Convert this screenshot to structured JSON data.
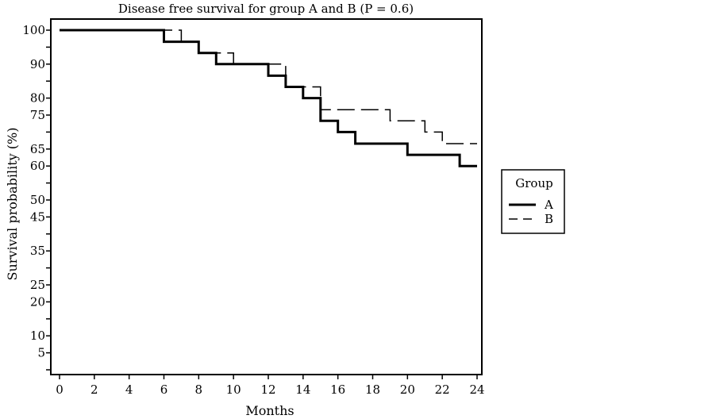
{
  "chart_data": {
    "type": "line",
    "title": "Disease free survival for group A and B (P = 0.6)",
    "xlabel": "Months",
    "ylabel": "Survival probability (%)",
    "xlim": [
      0,
      24
    ],
    "ylim": [
      0,
      100
    ],
    "x_ticks": [
      0,
      2,
      4,
      6,
      8,
      10,
      12,
      14,
      16,
      18,
      20,
      22,
      24
    ],
    "y_ticks": [
      5,
      10,
      20,
      25,
      35,
      45,
      50,
      60,
      65,
      75,
      80,
      90,
      100
    ],
    "legend": {
      "title": "Group",
      "placement": "right"
    },
    "series": [
      {
        "name": "A",
        "style": "solid",
        "color": "#000000",
        "x": [
          0,
          6,
          6,
          8,
          8,
          9,
          9,
          12,
          12,
          13,
          13,
          14,
          14,
          15,
          15,
          16,
          16,
          17,
          17,
          20,
          20,
          23,
          23,
          24
        ],
        "y": [
          100,
          100,
          96.6,
          96.6,
          93.3,
          93.3,
          90,
          90,
          86.6,
          86.6,
          83.3,
          83.3,
          80,
          80,
          73.3,
          73.3,
          70,
          70,
          66.6,
          66.6,
          63.3,
          63.3,
          60,
          60
        ]
      },
      {
        "name": "B",
        "style": "dashed",
        "color": "#000000",
        "x": [
          0,
          7,
          7,
          8,
          8,
          10,
          10,
          13,
          13,
          15,
          15,
          19,
          19,
          21,
          21,
          22,
          22,
          24
        ],
        "y": [
          100,
          100,
          96.6,
          96.6,
          93.3,
          93.3,
          90,
          90,
          83.3,
          83.3,
          76.6,
          76.6,
          73.3,
          73.3,
          70,
          70,
          66.6,
          66.6
        ]
      }
    ]
  }
}
